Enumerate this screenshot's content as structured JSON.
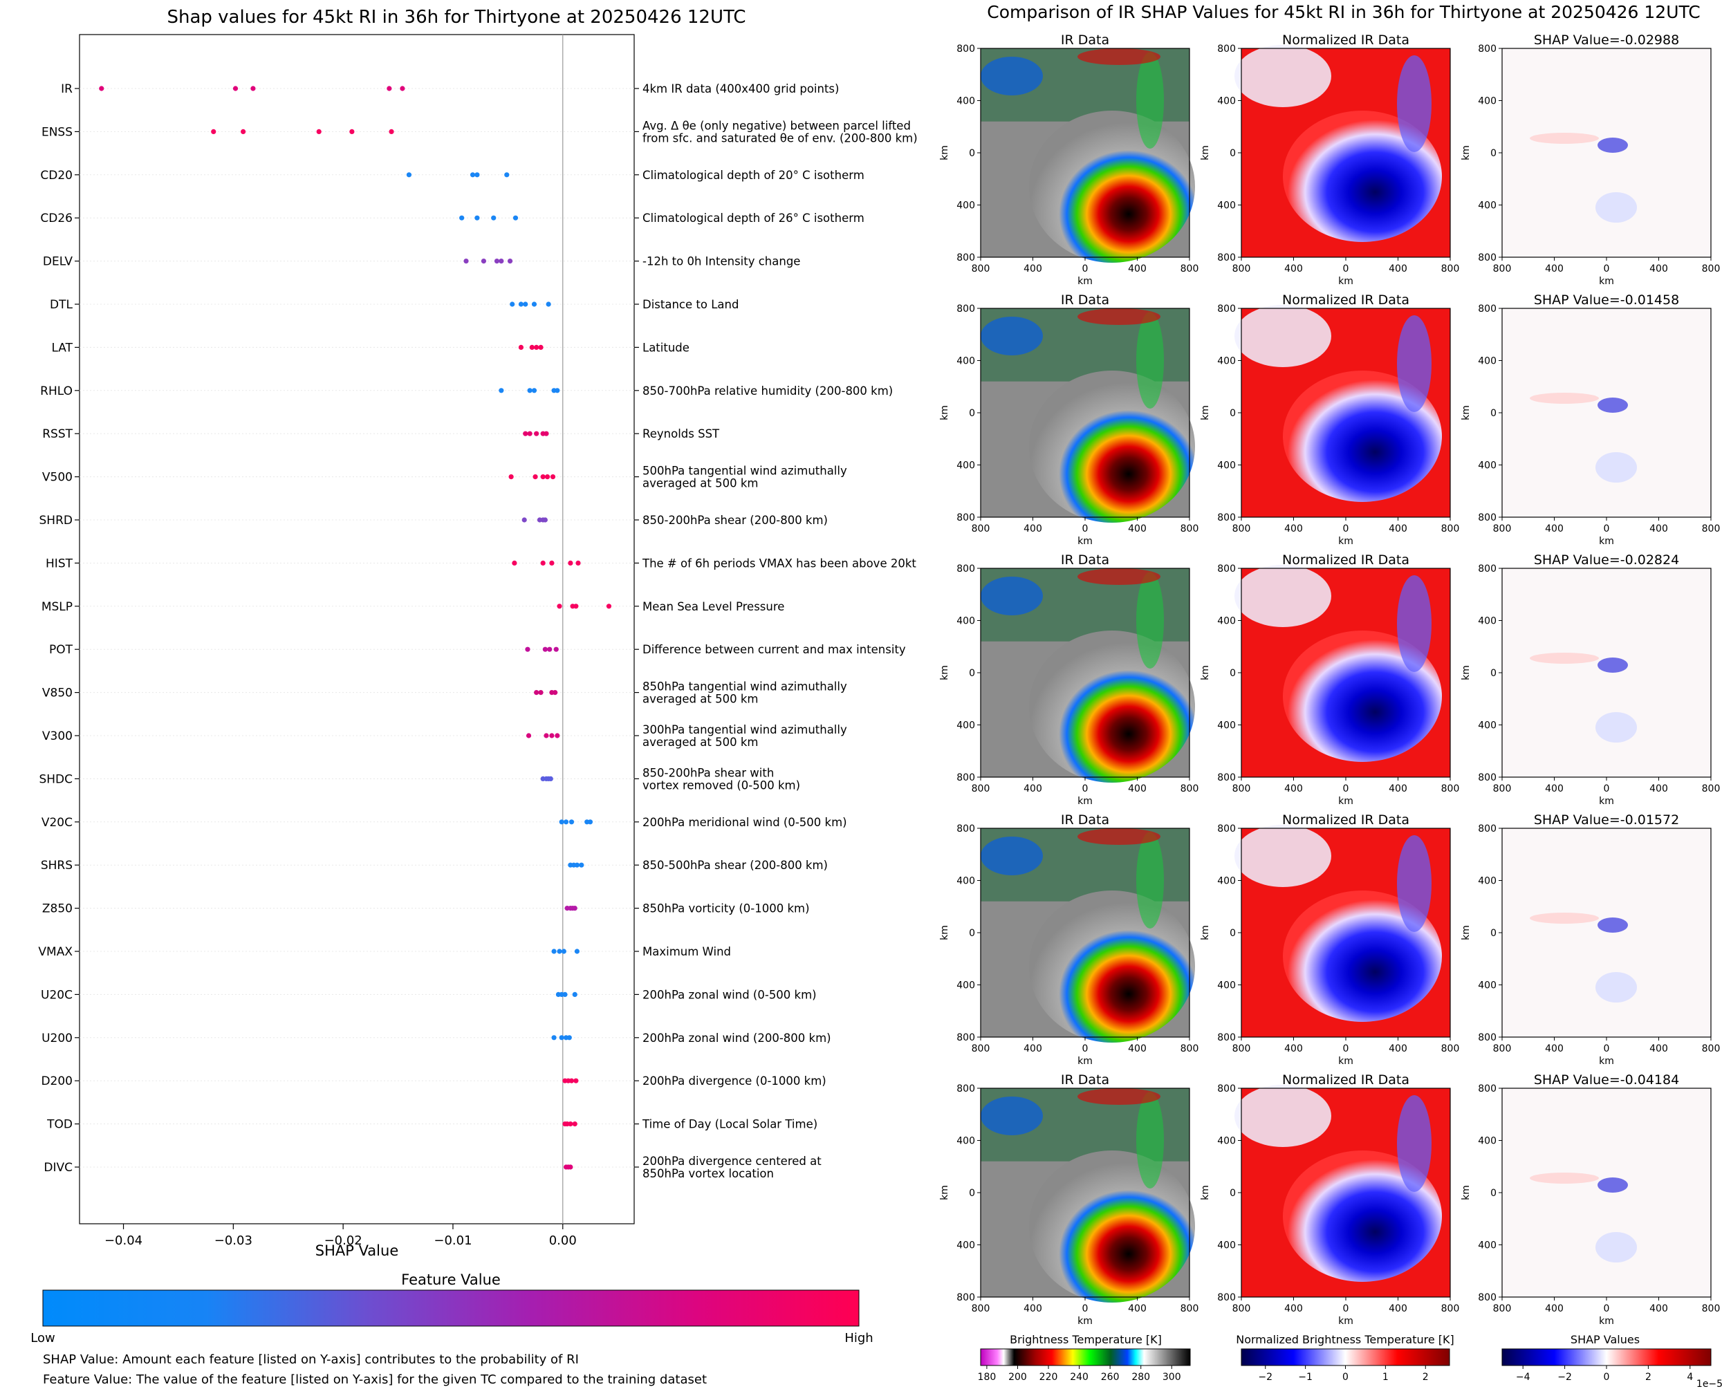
{
  "left_panel": {
    "title": "Shap values for 45kt RI in 36h for Thirtyone at 20250426 12UTC",
    "xlabel": "SHAP Value",
    "colorbar_title": "Feature Value",
    "colorbar_low": "Low",
    "colorbar_high": "High",
    "note1": "SHAP Value: Amount each feature [listed on Y-axis] contributes to the probability of RI",
    "note2": "Feature Value: The value of the feature [listed on Y-axis] for the given TC compared to the training dataset"
  },
  "right_panel": {
    "title": "Comparison of IR SHAP Values for 45kt RI in 36h for Thirtyone at 20250426 12UTC",
    "col1_title": "IR Data",
    "col2_title": "Normalized IR Data",
    "shap_titles": [
      "SHAP Value=-0.02988",
      "SHAP Value=-0.01458",
      "SHAP Value=-0.02824",
      "SHAP Value=-0.01572",
      "SHAP Value=-0.04184"
    ],
    "axis_label": "km",
    "ticks": [
      "800",
      "400",
      "0",
      "400",
      "800"
    ],
    "cb1_title": "Brightness Temperature [K]",
    "cb1_ticks": [
      "180",
      "200",
      "220",
      "240",
      "260",
      "280",
      "300"
    ],
    "cb2_title": "Normalized Brightness Temperature [K]",
    "cb2_ticks": [
      "−2",
      "−1",
      "0",
      "1",
      "2"
    ],
    "cb3_title": "SHAP Values",
    "cb3_ticks": [
      "−4",
      "−2",
      "0",
      "2",
      "4"
    ],
    "cb3_offset": "1e−5"
  },
  "colors": {
    "low": "#008bfb",
    "mid": "#8a3fc0",
    "high": "#ff0052"
  },
  "chart_data": {
    "type": "scatter",
    "title": "Shap values for 45kt RI in 36h for Thirtyone at 20250426 12UTC",
    "xlabel": "SHAP Value",
    "xlim": [
      -0.044,
      0.0065
    ],
    "xticks": [
      -0.04,
      -0.03,
      -0.02,
      -0.01,
      0.0
    ],
    "xtick_labels": [
      "−0.04",
      "−0.03",
      "−0.02",
      "−0.01",
      "0.00"
    ],
    "features": [
      {
        "name": "IR",
        "desc": [
          "4km IR data (400x400 grid points)"
        ],
        "color": "#e0007a",
        "values": [
          -0.042,
          -0.0298,
          -0.0282,
          -0.0158,
          -0.0146
        ]
      },
      {
        "name": "ENSS",
        "desc": [
          "Avg. Δ θe (only negative) between parcel lifted",
          "from sfc. and saturated θe of env. (200-800 km)"
        ],
        "color": "#f70060",
        "values": [
          -0.0318,
          -0.0291,
          -0.0222,
          -0.0192,
          -0.0156
        ]
      },
      {
        "name": "CD20",
        "desc": [
          "Climatological depth of 20° C isotherm"
        ],
        "color": "#1a86f5",
        "values": [
          -0.014,
          -0.0082,
          -0.0078,
          -0.0051
        ]
      },
      {
        "name": "CD26",
        "desc": [
          "Climatological depth of 26° C isotherm"
        ],
        "color": "#1a86f5",
        "values": [
          -0.0092,
          -0.0078,
          -0.0063,
          -0.0043
        ]
      },
      {
        "name": "DELV",
        "desc": [
          "-12h to 0h Intensity change"
        ],
        "color": "#8a3fc0",
        "values": [
          -0.0088,
          -0.0072,
          -0.006,
          -0.0056,
          -0.0048
        ]
      },
      {
        "name": "DTL",
        "desc": [
          "Distance to Land"
        ],
        "color": "#1a86f5",
        "values": [
          -0.0046,
          -0.0038,
          -0.0034,
          -0.0026,
          -0.0013
        ]
      },
      {
        "name": "LAT",
        "desc": [
          "Latitude"
        ],
        "color": "#f7005c",
        "values": [
          -0.0038,
          -0.0028,
          -0.0024,
          -0.002
        ]
      },
      {
        "name": "RHLO",
        "desc": [
          "850-700hPa relative humidity (200-800 km)"
        ],
        "color": "#1a86f5",
        "values": [
          -0.0056,
          -0.003,
          -0.0026,
          -0.0008,
          -0.0005
        ]
      },
      {
        "name": "RSST",
        "desc": [
          "Reynolds SST"
        ],
        "color": "#e6006e",
        "values": [
          -0.0034,
          -0.003,
          -0.0024,
          -0.0018,
          -0.0015
        ]
      },
      {
        "name": "V500",
        "desc": [
          "500hPa tangential wind azimuthally",
          "averaged at 500 km"
        ],
        "color": "#f7005c",
        "values": [
          -0.0047,
          -0.0025,
          -0.0018,
          -0.0014,
          -0.0009
        ]
      },
      {
        "name": "SHRD",
        "desc": [
          "850-200hPa shear (200-800 km)"
        ],
        "color": "#7e48c8",
        "values": [
          -0.0035,
          -0.0021,
          -0.0018,
          -0.0016
        ]
      },
      {
        "name": "HIST",
        "desc": [
          "The # of 6h periods VMAX has been above 20kt"
        ],
        "color": "#f70060",
        "values": [
          -0.0044,
          -0.0018,
          -0.001,
          0.0007,
          0.0014
        ]
      },
      {
        "name": "MSLP",
        "desc": [
          "Mean Sea Level Pressure"
        ],
        "color": "#f70060",
        "values": [
          -0.0003,
          0.0009,
          0.0012,
          0.0042
        ]
      },
      {
        "name": "POT",
        "desc": [
          "Difference between current and max intensity"
        ],
        "color": "#c2109a",
        "values": [
          -0.0032,
          -0.0016,
          -0.0012,
          -0.0006
        ]
      },
      {
        "name": "V850",
        "desc": [
          "850hPa tangential wind azimuthally",
          "averaged at 500 km"
        ],
        "color": "#d1087e",
        "values": [
          -0.0024,
          -0.002,
          -0.001,
          -0.0007
        ]
      },
      {
        "name": "V300",
        "desc": [
          "300hPa tangential wind azimuthally",
          "averaged at 500 km"
        ],
        "color": "#d8067e",
        "values": [
          -0.0031,
          -0.0015,
          -0.001,
          -0.0005
        ]
      },
      {
        "name": "SHDC",
        "desc": [
          "850-200hPa shear with",
          "vortex removed (0-500 km)"
        ],
        "color": "#5b5ee0",
        "values": [
          -0.0018,
          -0.0015,
          -0.0013,
          -0.0011
        ]
      },
      {
        "name": "V20C",
        "desc": [
          "200hPa meridional wind (0-500 km)"
        ],
        "color": "#1a86f5",
        "values": [
          -0.0001,
          0.0003,
          0.0008,
          0.0022,
          0.0025
        ]
      },
      {
        "name": "SHRS",
        "desc": [
          "850-500hPa shear (200-800 km)"
        ],
        "color": "#1a86f5",
        "values": [
          0.0007,
          0.001,
          0.0013,
          0.0017
        ]
      },
      {
        "name": "Z850",
        "desc": [
          "850hPa vorticity (0-1000 km)"
        ],
        "color": "#b51aa8",
        "values": [
          0.0004,
          0.0007,
          0.0009,
          0.0011
        ]
      },
      {
        "name": "VMAX",
        "desc": [
          "Maximum Wind"
        ],
        "color": "#1a86f5",
        "values": [
          -0.0008,
          -0.0003,
          0.0001,
          0.0013
        ]
      },
      {
        "name": "U20C",
        "desc": [
          "200hPa zonal wind (0-500 km)"
        ],
        "color": "#1a86f5",
        "values": [
          -0.0004,
          -0.0001,
          0.0002,
          0.0011
        ]
      },
      {
        "name": "U200",
        "desc": [
          "200hPa zonal wind (200-800 km)"
        ],
        "color": "#1a86f5",
        "values": [
          -0.0008,
          -0.0001,
          0.0003,
          0.0006
        ]
      },
      {
        "name": "D200",
        "desc": [
          "200hPa divergence (0-1000 km)"
        ],
        "color": "#f70060",
        "values": [
          0.0002,
          0.0005,
          0.0008,
          0.0012
        ]
      },
      {
        "name": "TOD",
        "desc": [
          "Time of Day (Local Solar Time)"
        ],
        "color": "#f70060",
        "values": [
          0.0002,
          0.0004,
          0.0007,
          0.0011
        ]
      },
      {
        "name": "DIVC",
        "desc": [
          "200hPa divergence centered at",
          "850hPa vortex location"
        ],
        "color": "#e0007a",
        "values": [
          0.0003,
          0.0005,
          0.0007
        ]
      }
    ]
  }
}
